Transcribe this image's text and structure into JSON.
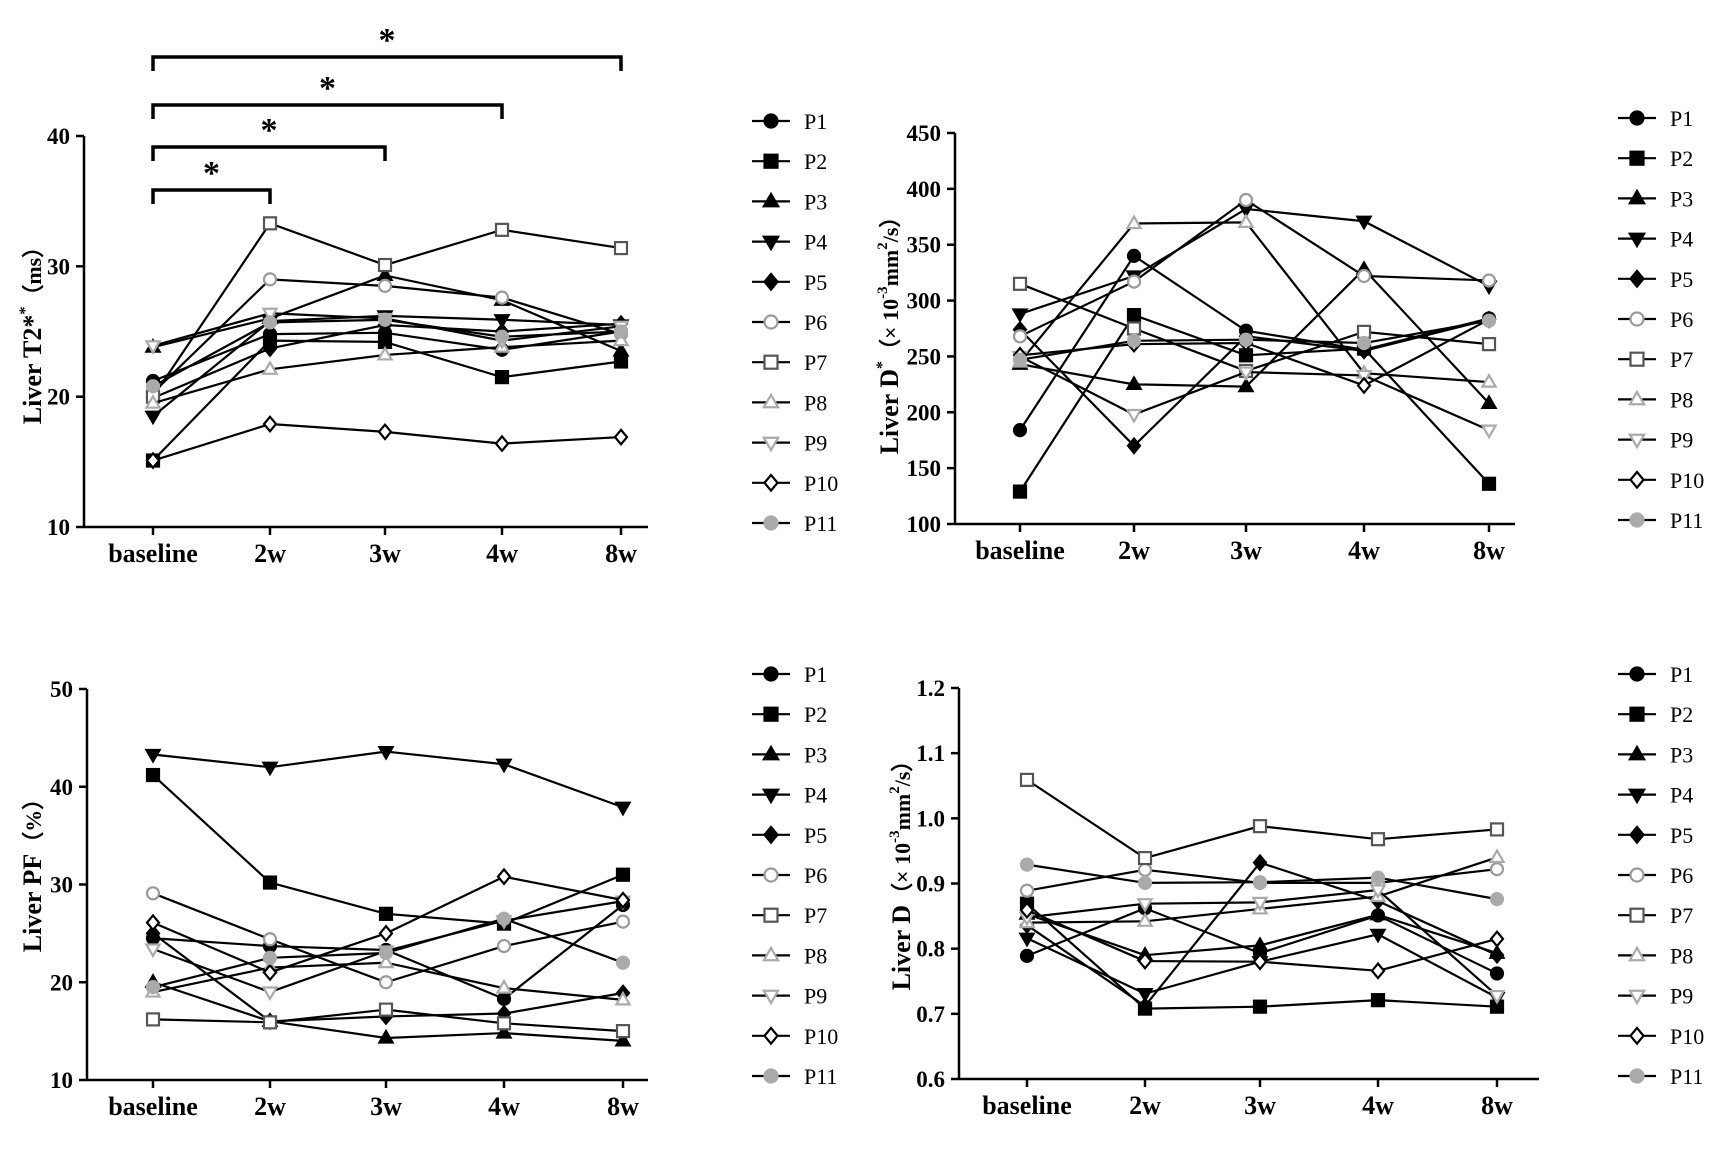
{
  "colors": {
    "black": "#000000",
    "grey": "#555555",
    "lightgrey": "#9a9a9a",
    "silver": "#aaaaaa"
  },
  "chart_data": [
    {
      "type": "line",
      "id": "t2",
      "ylabel_main": "Liver T2*",
      "ylabel_unit": "（ms）",
      "ylim": [
        10,
        40
      ],
      "yticks": [
        10,
        20,
        30,
        40
      ],
      "categories": [
        "baseline",
        "2w",
        "3w",
        "4w",
        "8w"
      ],
      "significance": [
        {
          "from": "baseline",
          "to": "2w",
          "label": "*"
        },
        {
          "from": "baseline",
          "to": "3w",
          "label": "*"
        },
        {
          "from": "baseline",
          "to": "4w",
          "label": "*"
        },
        {
          "from": "baseline",
          "to": "8w",
          "label": "*"
        }
      ],
      "series": [
        {
          "name": "P1",
          "values": [
            21.2,
            24.8,
            24.9,
            23.6,
            25.0
          ]
        },
        {
          "name": "P2",
          "values": [
            15.1,
            24.3,
            24.2,
            21.5,
            22.7
          ]
        },
        {
          "name": "P3",
          "values": [
            23.8,
            26.0,
            29.3,
            27.4,
            23.5
          ]
        },
        {
          "name": "P4",
          "values": [
            18.5,
            25.8,
            26.2,
            25.9,
            25.5
          ]
        },
        {
          "name": "P5",
          "values": [
            19.9,
            23.7,
            25.5,
            25.0,
            25.6
          ]
        },
        {
          "name": "P6",
          "values": [
            20.3,
            29.0,
            28.5,
            27.6,
            24.8
          ]
        },
        {
          "name": "P7",
          "values": [
            20.0,
            33.3,
            30.1,
            32.8,
            31.4
          ]
        },
        {
          "name": "P8",
          "values": [
            19.5,
            22.1,
            23.2,
            23.8,
            24.3
          ]
        },
        {
          "name": "P9",
          "values": [
            23.9,
            26.4,
            26.0,
            24.3,
            25.4
          ]
        },
        {
          "name": "P10",
          "values": [
            15.1,
            17.9,
            17.3,
            16.4,
            16.9
          ]
        },
        {
          "name": "P11",
          "values": [
            20.8,
            25.7,
            25.9,
            24.6,
            25.0
          ]
        }
      ]
    },
    {
      "type": "line",
      "id": "dstar",
      "ylabel_main": "Liver D",
      "ylabel_unit": "（× 10-3mm2/s）",
      "ylim": [
        100,
        450
      ],
      "yticks": [
        100,
        150,
        200,
        250,
        300,
        350,
        400,
        450
      ],
      "categories": [
        "baseline",
        "2w",
        "3w",
        "4w",
        "8w"
      ],
      "series": [
        {
          "name": "P1",
          "values": [
            184,
            340,
            273,
            256,
            284
          ]
        },
        {
          "name": "P2",
          "values": [
            129,
            287,
            251,
            257,
            136
          ]
        },
        {
          "name": "P3",
          "values": [
            243,
            225,
            223,
            328,
            208
          ]
        },
        {
          "name": "P4",
          "values": [
            288,
            322,
            382,
            371,
            313
          ]
        },
        {
          "name": "P5",
          "values": [
            274,
            170,
            268,
            255,
            283
          ]
        },
        {
          "name": "P6",
          "values": [
            268,
            317,
            390,
            322,
            318
          ]
        },
        {
          "name": "P7",
          "values": [
            315,
            275,
            237,
            272,
            261
          ]
        },
        {
          "name": "P8",
          "values": [
            245,
            369,
            370,
            235,
            227
          ]
        },
        {
          "name": "P9",
          "values": [
            250,
            198,
            236,
            233,
            184
          ]
        },
        {
          "name": "P10",
          "values": [
            251,
            261,
            262,
            224,
            283
          ]
        },
        {
          "name": "P11",
          "values": [
            247,
            264,
            265,
            262,
            282
          ]
        }
      ]
    },
    {
      "type": "line",
      "id": "pf",
      "ylabel_main": "Liver PF",
      "ylabel_unit": "（%）",
      "ylim": [
        10,
        50
      ],
      "yticks": [
        10,
        20,
        30,
        40,
        50
      ],
      "categories": [
        "baseline",
        "2w",
        "3w",
        "4w",
        "8w"
      ],
      "series": [
        {
          "name": "P1",
          "values": [
            24.5,
            23.7,
            23.3,
            18.3,
            27.9
          ]
        },
        {
          "name": "P2",
          "values": [
            41.2,
            30.2,
            27.0,
            26.0,
            31.0
          ]
        },
        {
          "name": "P3",
          "values": [
            20.0,
            16.0,
            14.3,
            14.8,
            14.0
          ]
        },
        {
          "name": "P4",
          "values": [
            43.3,
            42.0,
            43.6,
            42.3,
            37.9
          ]
        },
        {
          "name": "P5",
          "values": [
            25.0,
            16.0,
            16.5,
            16.8,
            18.9
          ]
        },
        {
          "name": "P6",
          "values": [
            29.1,
            24.4,
            20.0,
            23.7,
            26.2
          ]
        },
        {
          "name": "P7",
          "values": [
            16.2,
            15.9,
            17.2,
            15.8,
            15.0
          ]
        },
        {
          "name": "P8",
          "values": [
            19.0,
            21.5,
            22.0,
            19.4,
            18.2
          ]
        },
        {
          "name": "P9",
          "values": [
            23.4,
            19.0,
            23.2,
            26.3,
            28.3
          ]
        },
        {
          "name": "P10",
          "values": [
            26.1,
            21.0,
            25.0,
            30.8,
            28.4
          ]
        },
        {
          "name": "P11",
          "values": [
            19.5,
            22.5,
            23.0,
            26.5,
            22.0
          ]
        }
      ]
    },
    {
      "type": "line",
      "id": "d",
      "ylabel_main": "Liver D",
      "ylabel_unit": "（× 10-3mm2/s）",
      "ylim": [
        0.6,
        1.2
      ],
      "yticks": [
        0.6,
        0.7,
        0.8,
        0.9,
        1.0,
        1.1,
        1.2
      ],
      "ytick_labels": [
        "0.6",
        "0.7",
        "0.8",
        "0.9",
        "1.0",
        "1.1",
        "1.2"
      ],
      "categories": [
        "baseline",
        "2w",
        "3w",
        "4w",
        "8w"
      ],
      "series": [
        {
          "name": "P1",
          "values": [
            0.789,
            0.862,
            0.793,
            0.851,
            0.762
          ]
        },
        {
          "name": "P2",
          "values": [
            0.869,
            0.708,
            0.711,
            0.721,
            0.711
          ]
        },
        {
          "name": "P3",
          "values": [
            0.853,
            0.79,
            0.805,
            0.852,
            0.793
          ]
        },
        {
          "name": "P4",
          "values": [
            0.816,
            0.731,
            0.78,
            0.822,
            0.725
          ]
        },
        {
          "name": "P5",
          "values": [
            0.836,
            0.712,
            0.932,
            0.873,
            0.79
          ]
        },
        {
          "name": "P6",
          "values": [
            0.889,
            0.921,
            0.901,
            0.901,
            0.922
          ]
        },
        {
          "name": "P7",
          "values": [
            1.059,
            0.939,
            0.988,
            0.968,
            0.983
          ]
        },
        {
          "name": "P8",
          "values": [
            0.84,
            0.842,
            0.861,
            0.88,
            0.94
          ]
        },
        {
          "name": "P9",
          "values": [
            0.848,
            0.869,
            0.871,
            0.89,
            0.728
          ]
        },
        {
          "name": "P10",
          "values": [
            0.859,
            0.781,
            0.78,
            0.766,
            0.815
          ]
        },
        {
          "name": "P11",
          "values": [
            0.929,
            0.901,
            0.902,
            0.909,
            0.876
          ]
        }
      ]
    }
  ]
}
